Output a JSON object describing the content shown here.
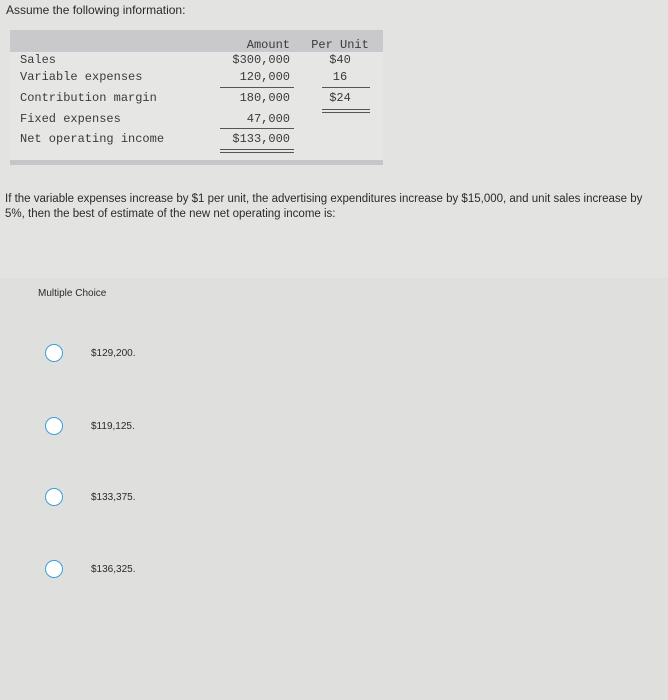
{
  "intro": "Assume the following information:",
  "table": {
    "headers": {
      "amount": "Amount",
      "per_unit": "Per Unit"
    },
    "rows": [
      {
        "label": "Sales",
        "amount": "$300,000",
        "per_unit": "$40"
      },
      {
        "label": "Variable expenses",
        "amount": "120,000",
        "per_unit": "16"
      },
      {
        "label": "Contribution margin",
        "amount": "180,000",
        "per_unit": "$24"
      },
      {
        "label": "Fixed expenses",
        "amount": "47,000",
        "per_unit": ""
      },
      {
        "label": "Net operating income",
        "amount": "$133,000",
        "per_unit": ""
      }
    ]
  },
  "question": "If the variable expenses increase by $1 per unit, the advertising expenditures increase by $15,000, and unit sales increase by 5%, then the best of estimate of the new net operating income is:",
  "multiple_choice": {
    "title": "Multiple Choice",
    "options": [
      "$129,200.",
      "$119,125.",
      "$133,375.",
      "$136,325."
    ],
    "radio_color": "#3aa0d8"
  }
}
